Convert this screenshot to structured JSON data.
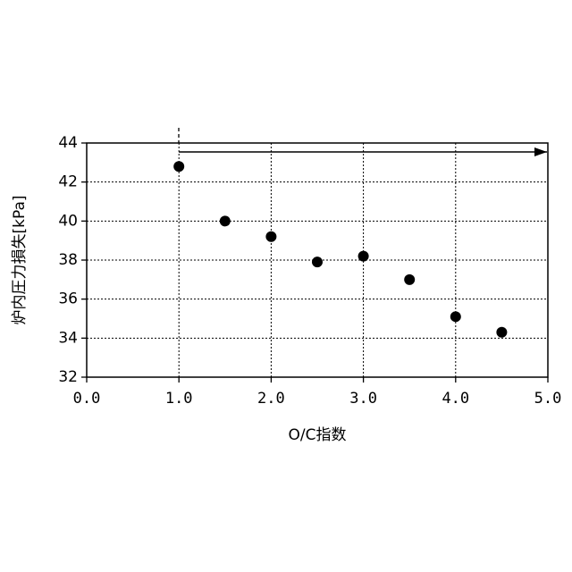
{
  "chart_data": {
    "type": "scatter",
    "xlabel": "O/C指数",
    "ylabel": "炉内圧力損失[kPa]",
    "x": [
      1.0,
      1.5,
      2.0,
      2.5,
      3.0,
      3.5,
      4.0,
      4.5
    ],
    "values": [
      42.8,
      40.0,
      39.2,
      37.9,
      38.2,
      37.0,
      35.1,
      34.3
    ],
    "color": "#000000",
    "xlim": [
      0,
      5
    ],
    "xticks": [
      {
        "value": 0,
        "label": "0.0"
      },
      {
        "value": 1,
        "label": "1.0"
      },
      {
        "value": 2,
        "label": "2.0"
      },
      {
        "value": 3,
        "label": "3.0"
      },
      {
        "value": 4,
        "label": "4.0"
      },
      {
        "value": 5,
        "label": "5.0"
      }
    ],
    "ylim": [
      32,
      44
    ],
    "yticks": [
      32,
      34,
      36,
      38,
      40,
      42,
      44
    ],
    "grid": true
  }
}
